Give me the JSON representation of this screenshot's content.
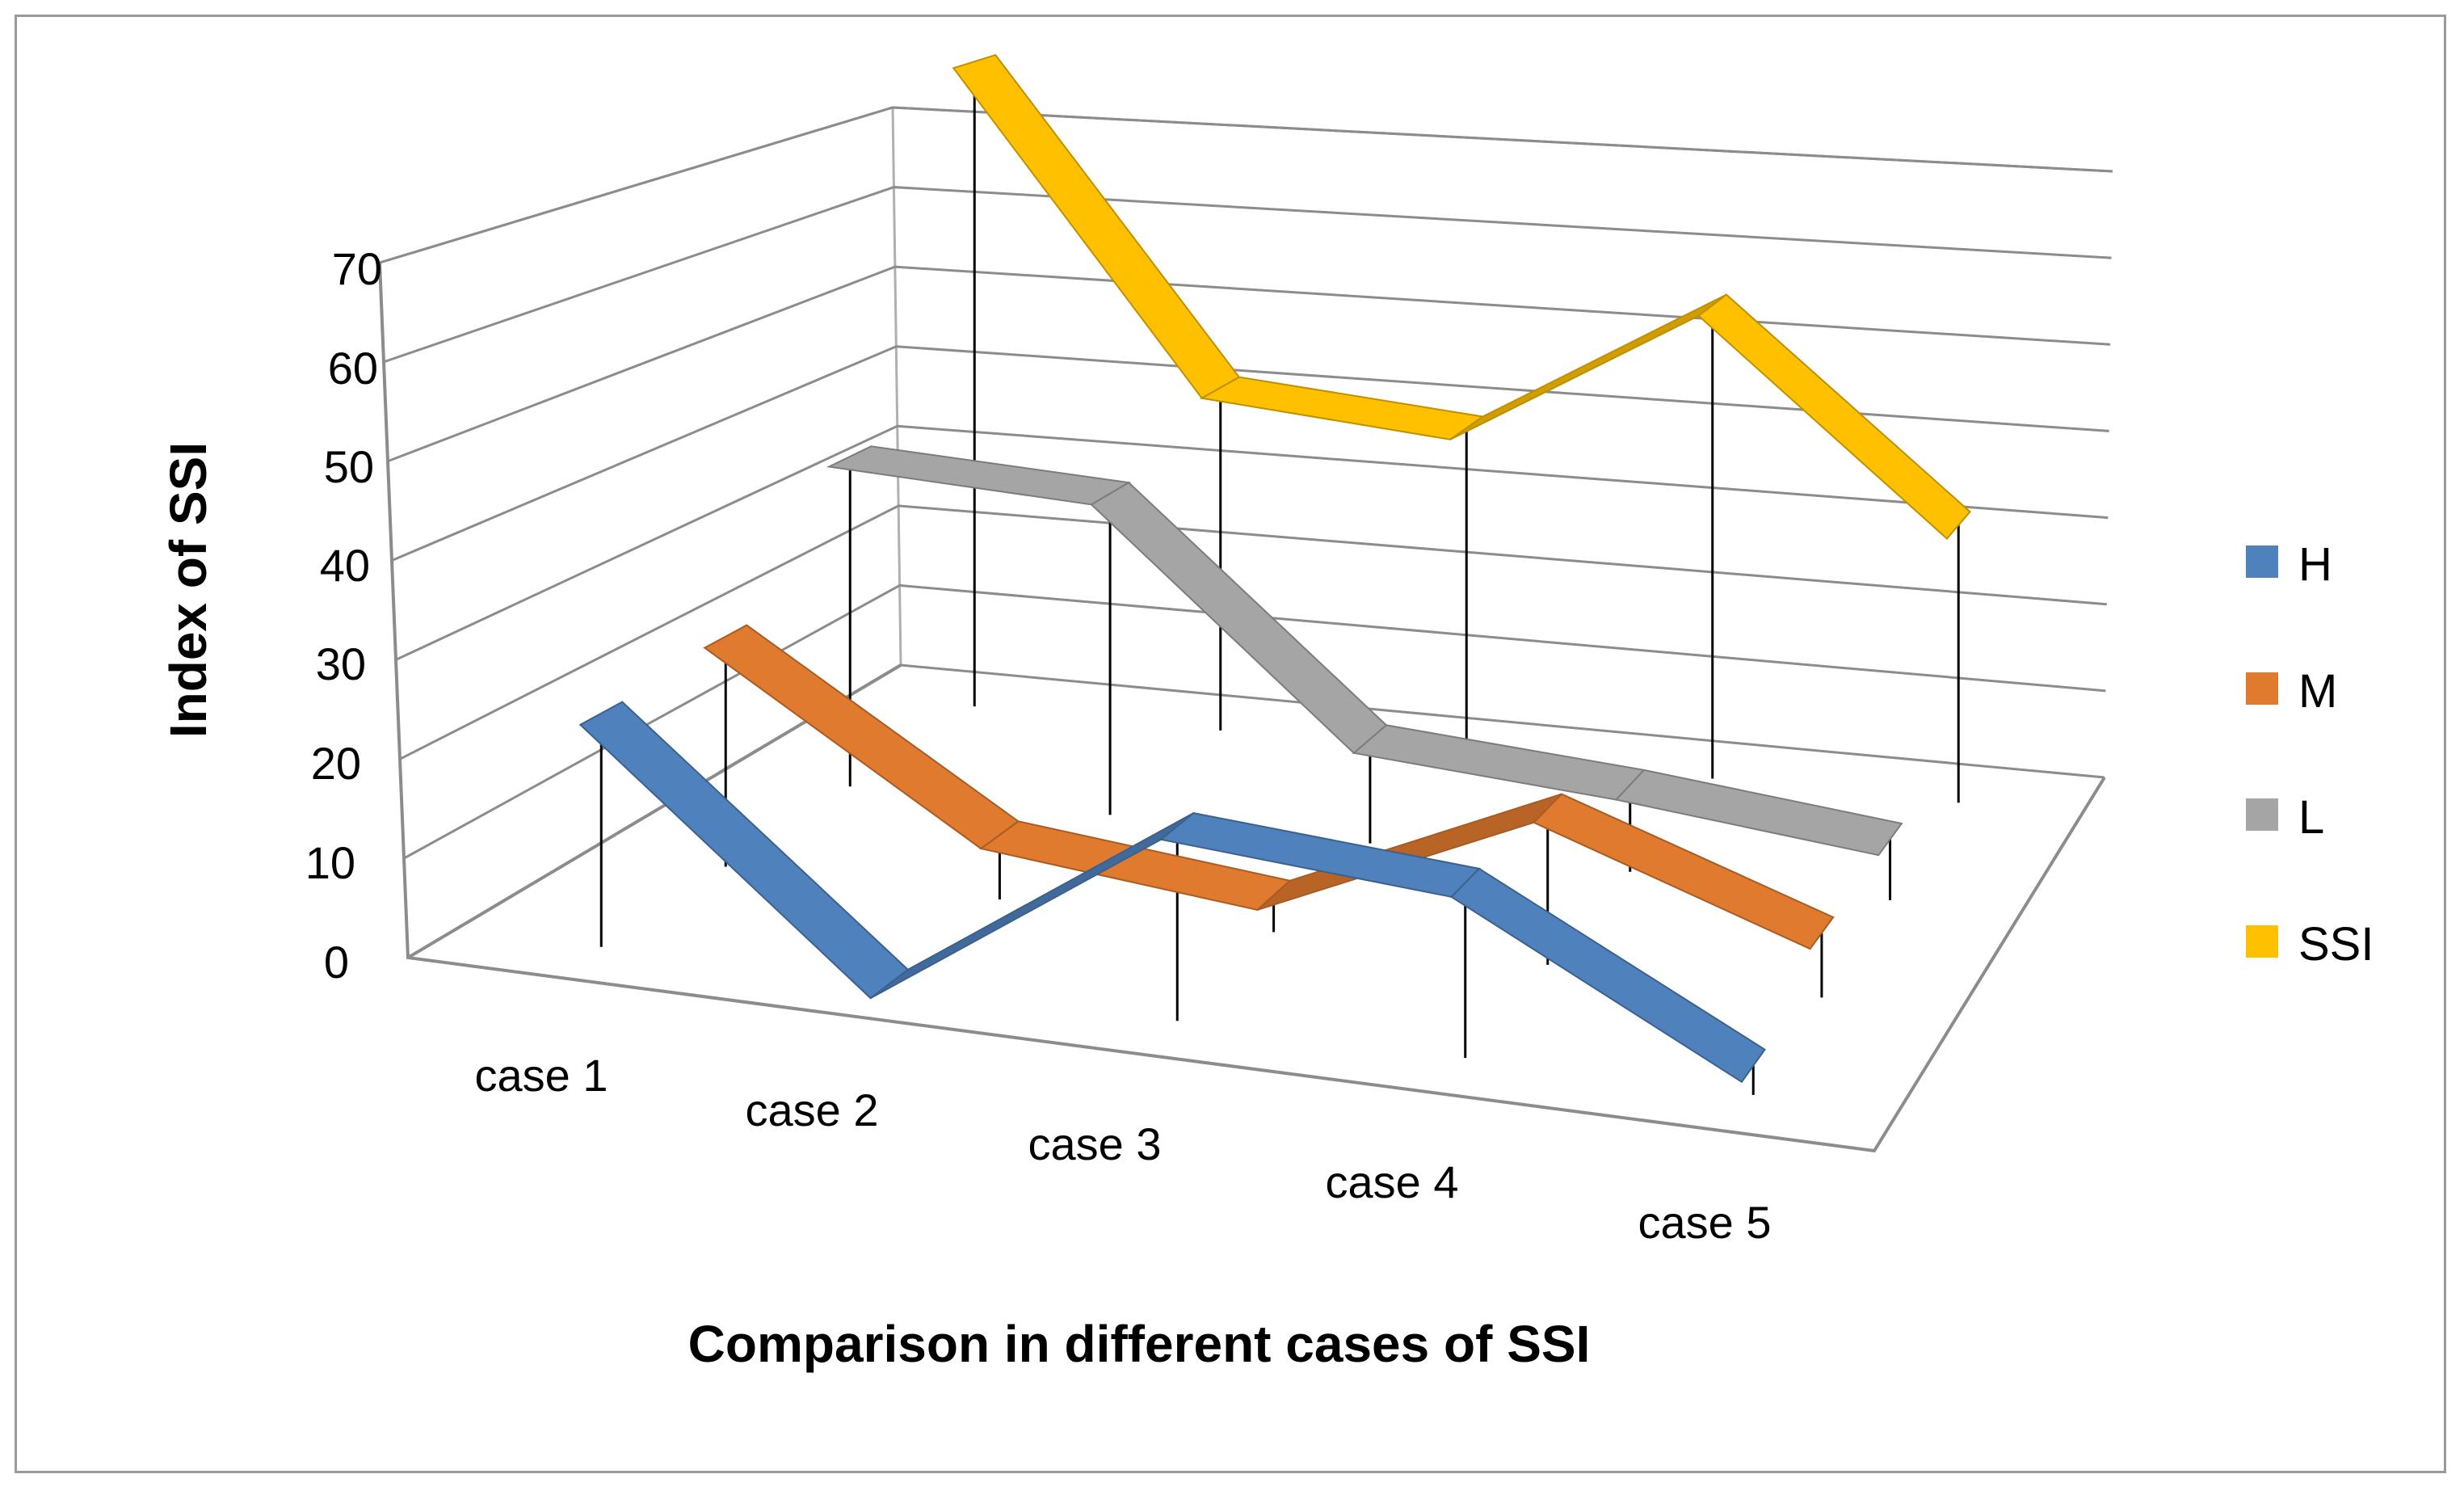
{
  "chart_data": {
    "type": "line",
    "style": "3d-ribbon",
    "categories": [
      "case 1",
      "case 2",
      "case 3",
      "case 4",
      "case 5"
    ],
    "series": [
      {
        "name": "H",
        "color": "#4f81bd",
        "values": [
          24,
          0,
          20,
          18,
          3
        ]
      },
      {
        "name": "M",
        "color": "#e07a2f",
        "values": [
          25,
          7,
          4,
          17,
          7
        ]
      },
      {
        "name": "L",
        "color": "#a5a5a5",
        "values": [
          38,
          37,
          12,
          10,
          7
        ]
      },
      {
        "name": "SSI",
        "color": "#ffc000",
        "values": [
          79,
          42,
          40,
          58,
          34
        ]
      }
    ],
    "y_ticks": [
      "0",
      "10",
      "20",
      "30",
      "40",
      "50",
      "60",
      "70"
    ],
    "ylim": [
      0,
      70
    ],
    "xlabel": "Comparison in different cases of SSI",
    "ylabel": "Index of SSI",
    "legend": "right"
  }
}
